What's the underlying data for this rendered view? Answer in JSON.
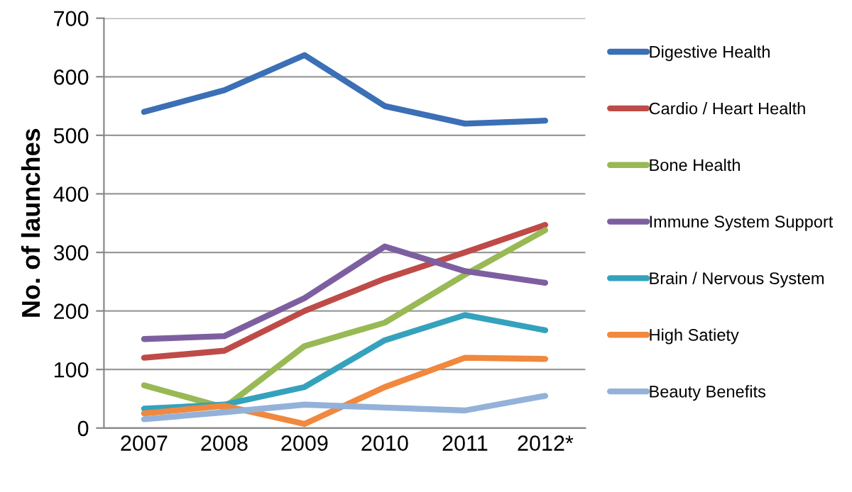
{
  "chart_data": {
    "type": "line",
    "ylabel": "No. of launches",
    "categories": [
      "2007",
      "2008",
      "2009",
      "2010",
      "2011",
      "2012*"
    ],
    "ylim": [
      0,
      700
    ],
    "yticks": [
      0,
      100,
      200,
      300,
      400,
      500,
      600,
      700
    ],
    "grid": "y",
    "legend": "right",
    "marker": "none",
    "line_style": "solid",
    "series": [
      {
        "name": "Digestive Health",
        "color": "#3b6fb6",
        "values": [
          540,
          577,
          637,
          550,
          520,
          525
        ]
      },
      {
        "name": "Cardio / Heart Health",
        "color": "#be4b48",
        "values": [
          120,
          132,
          200,
          255,
          300,
          347
        ]
      },
      {
        "name": "Bone Health",
        "color": "#98b954",
        "values": [
          73,
          35,
          140,
          180,
          262,
          338
        ]
      },
      {
        "name": "Immune System Support",
        "color": "#7d5fa0",
        "values": [
          152,
          157,
          222,
          310,
          268,
          248
        ]
      },
      {
        "name": "Brain / Nervous System",
        "color": "#35a2bd",
        "values": [
          33,
          40,
          70,
          150,
          193,
          167
        ]
      },
      {
        "name": "High Satiety",
        "color": "#f0883e",
        "values": [
          25,
          38,
          7,
          70,
          120,
          118
        ]
      },
      {
        "name": "Beauty Benefits",
        "color": "#94b1d9",
        "values": [
          15,
          27,
          40,
          35,
          30,
          55
        ]
      }
    ]
  }
}
